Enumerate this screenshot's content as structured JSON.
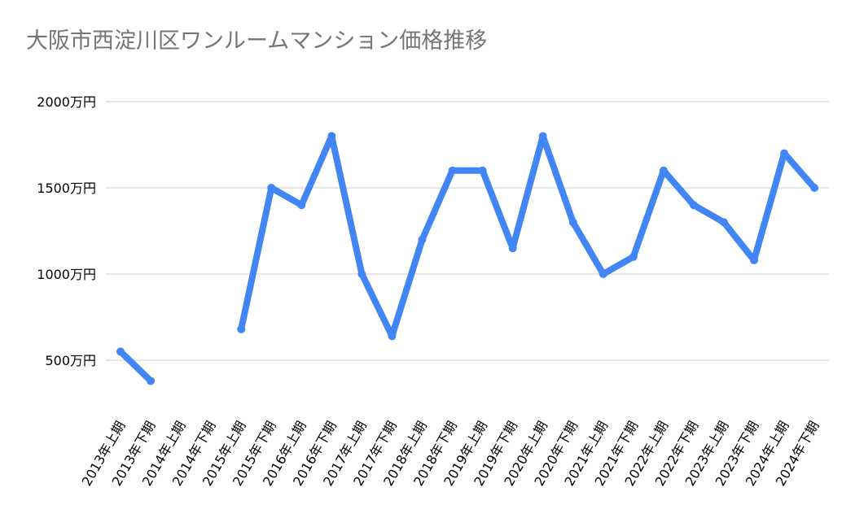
{
  "chart_data": {
    "type": "line",
    "title": "大阪市西淀川区ワンルームマンション価格推移",
    "xlabel": "",
    "ylabel": "",
    "categories": [
      "2013年上期",
      "2013年下期",
      "2014年上期",
      "2014年下期",
      "2015年上期",
      "2015年下期",
      "2016年上期",
      "2016年下期",
      "2017年上期",
      "2017年下期",
      "2018年上期",
      "2018年下期",
      "2019年上期",
      "2019年下期",
      "2020年上期",
      "2020年下期",
      "2021年上期",
      "2021年下期",
      "2022年上期",
      "2022年下期",
      "2023年上期",
      "2023年下期",
      "2024年上期",
      "2024年下期"
    ],
    "series": [
      {
        "values": [
          550,
          380,
          null,
          null,
          680,
          1500,
          1400,
          1800,
          1000,
          640,
          1200,
          1600,
          1600,
          1150,
          1800,
          1300,
          1000,
          1100,
          1600,
          1400,
          1300,
          1080,
          1700,
          1500
        ],
        "color": "#4285f4"
      }
    ],
    "yticks": [
      {
        "value": 500,
        "label": "500万円"
      },
      {
        "value": 1000,
        "label": "1000万円"
      },
      {
        "value": 1500,
        "label": "1500万円"
      },
      {
        "value": 2000,
        "label": "2000万円"
      }
    ],
    "ylim": [
      250,
      2000
    ],
    "grid": true,
    "legend": "none"
  }
}
